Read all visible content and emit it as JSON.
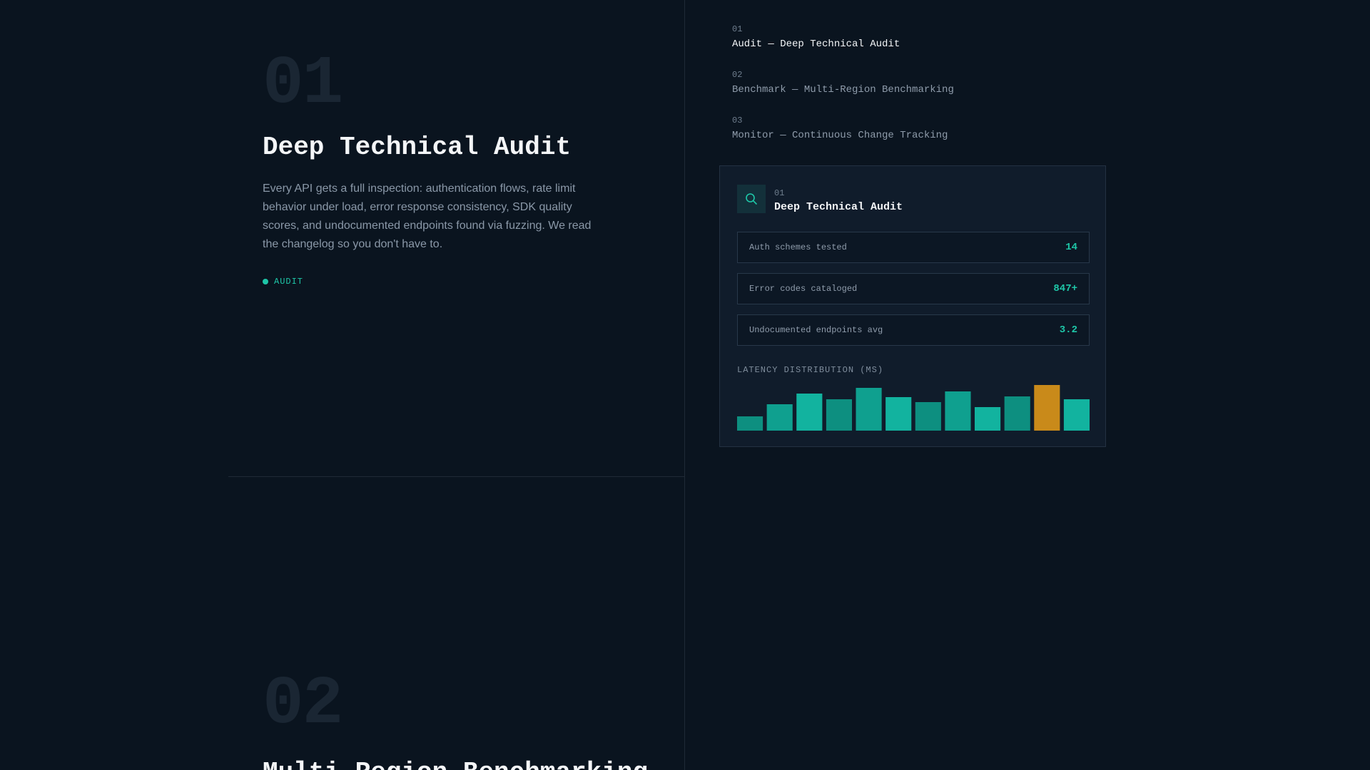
{
  "sections": [
    {
      "number": "01",
      "title": "Deep Technical Audit",
      "description": "Every API gets a full inspection: authentication flows, rate limit behavior under load, error response consistency, SDK quality scores, and undocumented endpoints found via fuzzing. We read the changelog so you don't have to.",
      "tag": "AUDIT"
    },
    {
      "number": "02",
      "title": "Multi-Region Benchmarking"
    }
  ],
  "nav": {
    "items": [
      {
        "number": "01",
        "label": "Audit — Deep Technical Audit",
        "active": true
      },
      {
        "number": "02",
        "label": "Benchmark — Multi-Region Benchmarking",
        "active": false
      },
      {
        "number": "03",
        "label": "Monitor — Continuous Change Tracking",
        "active": false
      }
    ]
  },
  "card": {
    "number": "01",
    "title": "Deep Technical Audit",
    "icon": "search-icon",
    "stats": [
      {
        "label": "Auth schemes tested",
        "value": "14"
      },
      {
        "label": "Error codes cataloged",
        "value": "847+"
      },
      {
        "label": "Undocumented endpoints avg",
        "value": "3.2"
      }
    ]
  },
  "chart_data": {
    "type": "bar",
    "title": "LATENCY DISTRIBUTION (MS)",
    "values": [
      20,
      37,
      52,
      44,
      60,
      47,
      40,
      55,
      33,
      48,
      64,
      44
    ],
    "highlight_index": 10,
    "ylim": [
      0,
      64
    ],
    "colors": {
      "bar_shades": [
        "#0d8f80",
        "#0fa08f",
        "#12b39f"
      ],
      "highlight": "#c98a1a"
    }
  },
  "colors": {
    "background": "#0a141f",
    "accent": "#1ec7a8",
    "card_bg": "#101c2b"
  }
}
